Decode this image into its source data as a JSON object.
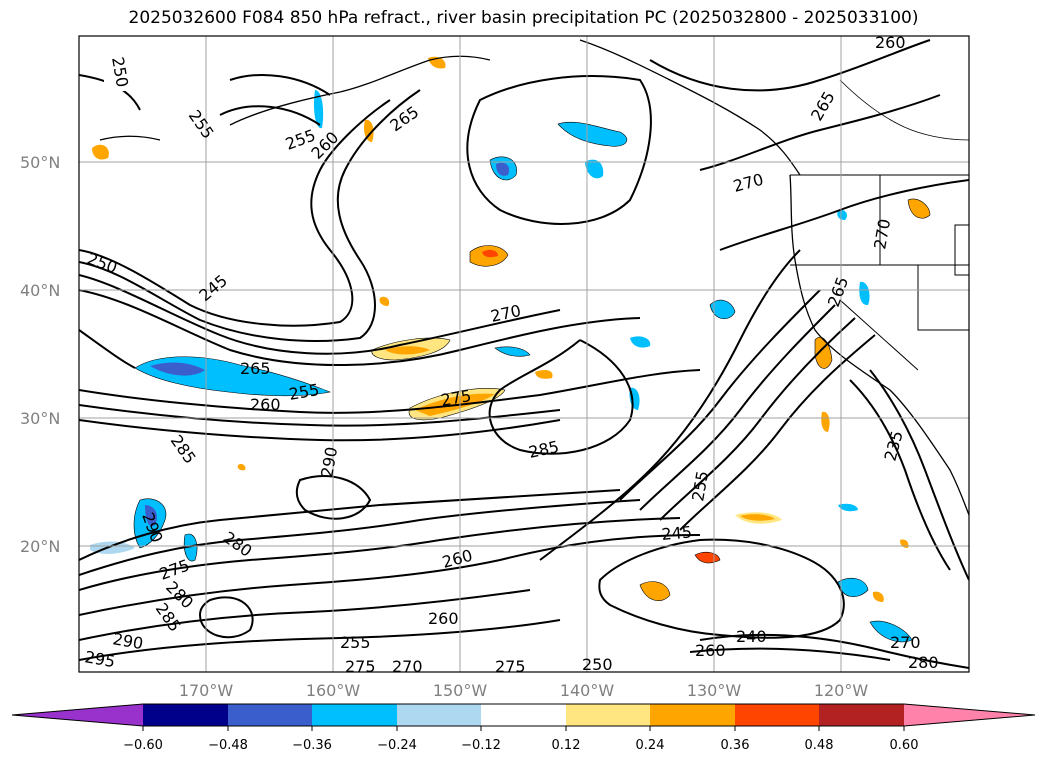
{
  "title": "2025032600 F084 850 hPa refract., river basin precipitation PC (2025032800 - 2025033100)",
  "map": {
    "lat_labels": [
      "50°N",
      "40°N",
      "30°N",
      "20°N"
    ],
    "lon_labels": [
      "170°W",
      "160°W",
      "150°W",
      "140°W",
      "130°W",
      "120°W"
    ],
    "contour_labels": [
      {
        "text": "250"
      },
      {
        "text": "255"
      },
      {
        "text": "255"
      },
      {
        "text": "260"
      },
      {
        "text": "265"
      },
      {
        "text": "260"
      },
      {
        "text": "265"
      },
      {
        "text": "270"
      },
      {
        "text": "250"
      },
      {
        "text": "245"
      },
      {
        "text": "270"
      },
      {
        "text": "265"
      },
      {
        "text": "265"
      },
      {
        "text": "260"
      },
      {
        "text": "255"
      },
      {
        "text": "275"
      },
      {
        "text": "285"
      },
      {
        "text": "290"
      },
      {
        "text": "285"
      },
      {
        "text": "270"
      },
      {
        "text": "235"
      },
      {
        "text": "255"
      },
      {
        "text": "245"
      },
      {
        "text": "290"
      },
      {
        "text": "280"
      },
      {
        "text": "275"
      },
      {
        "text": "280"
      },
      {
        "text": "285"
      },
      {
        "text": "260"
      },
      {
        "text": "260"
      },
      {
        "text": "290"
      },
      {
        "text": "295"
      },
      {
        "text": "255"
      },
      {
        "text": "275"
      },
      {
        "text": "270"
      },
      {
        "text": "275"
      },
      {
        "text": "250"
      },
      {
        "text": "240"
      },
      {
        "text": "260"
      },
      {
        "text": "270"
      },
      {
        "text": "280"
      }
    ],
    "colors": {
      "contour": "#000000",
      "grid": "#a0a0a0",
      "coast": "#000000"
    }
  },
  "colorbar": {
    "ticks": [
      "−0.60",
      "−0.48",
      "−0.36",
      "−0.24",
      "−0.12",
      "0.12",
      "0.24",
      "0.36",
      "0.48",
      "0.60"
    ],
    "colors": [
      "#9932cc",
      "#00008b",
      "#3a5fcd",
      "#00bfff",
      "#add8f0",
      "#ffffff",
      "#ffe680",
      "#ffa500",
      "#ff4500",
      "#b22222",
      "#ff82ab"
    ]
  }
}
